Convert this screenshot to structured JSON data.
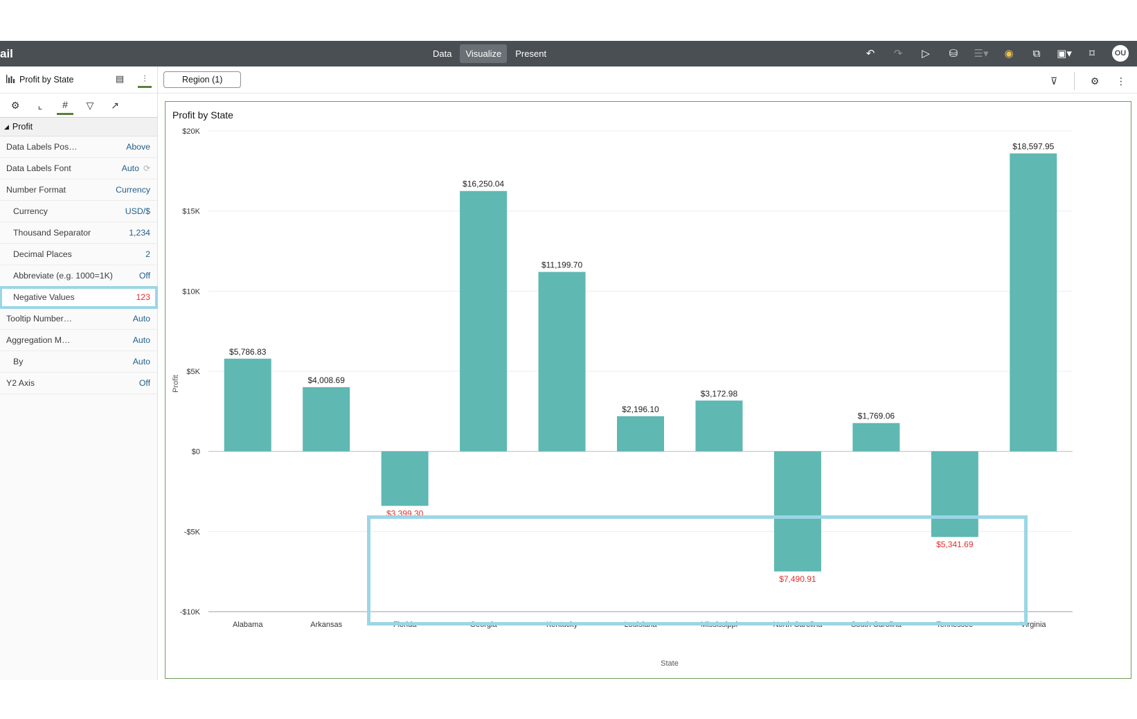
{
  "app": {
    "title_partial": "ail",
    "modes": [
      {
        "label": "Data",
        "active": false
      },
      {
        "label": "Visualize",
        "active": true
      },
      {
        "label": "Present",
        "active": false
      }
    ],
    "user_initials": "OU"
  },
  "panel": {
    "title": "Profit by State",
    "section": "Profit",
    "props": [
      {
        "label": "Data Labels Pos…",
        "value": "Above"
      },
      {
        "label": "Data Labels Font",
        "value": "Auto"
      },
      {
        "label": "Number Format",
        "value": "Currency"
      },
      {
        "label": "Currency",
        "value": "USD/$"
      },
      {
        "label": "Thousand Separator",
        "value": "1,234"
      },
      {
        "label": "Decimal Places",
        "value": "2"
      },
      {
        "label": "Abbreviate (e.g. 1000=1K)",
        "value": "Off"
      },
      {
        "label": "Negative Values",
        "value": "123"
      },
      {
        "label": "Tooltip Number…",
        "value": "Auto"
      },
      {
        "label": "Aggregation M…",
        "value": "Auto"
      },
      {
        "label": "By",
        "value": "Auto"
      },
      {
        "label": "Y2 Axis",
        "value": "Off"
      }
    ]
  },
  "filter": {
    "region_label": "Region (1)"
  },
  "colors": {
    "bar": "#5fb8b2",
    "negative_label": "#e52e2e",
    "highlight": "#9bd6e6"
  },
  "chart_data": {
    "type": "bar",
    "title": "Profit by State",
    "xlabel": "State",
    "ylabel": "Profit",
    "ylim": [
      -10000,
      20000
    ],
    "yticks": [
      {
        "value": 20000,
        "label": "$20K"
      },
      {
        "value": 15000,
        "label": "$15K"
      },
      {
        "value": 10000,
        "label": "$10K"
      },
      {
        "value": 5000,
        "label": "$5K"
      },
      {
        "value": 0,
        "label": "$0"
      },
      {
        "value": -5000,
        "label": "-$5K"
      },
      {
        "value": -10000,
        "label": "-$10K"
      }
    ],
    "categories": [
      "Alabama",
      "Arkansas",
      "Florida",
      "Georgia",
      "Kentucky",
      "Louisiana",
      "Mississippi",
      "North Carolina",
      "South Carolina",
      "Tennessee",
      "Virginia"
    ],
    "values": [
      5786.83,
      4008.69,
      -3399.3,
      16250.04,
      11199.7,
      2196.1,
      3172.98,
      -7490.91,
      1769.06,
      -5341.69,
      18597.95
    ],
    "labels": [
      "$5,786.83",
      "$4,008.69",
      "$3,399.30",
      "$16,250.04",
      "$11,199.70",
      "$2,196.10",
      "$3,172.98",
      "$7,490.91",
      "$1,769.06",
      "$5,341.69",
      "$18,597.95"
    ],
    "grid": true,
    "legend": "none"
  }
}
